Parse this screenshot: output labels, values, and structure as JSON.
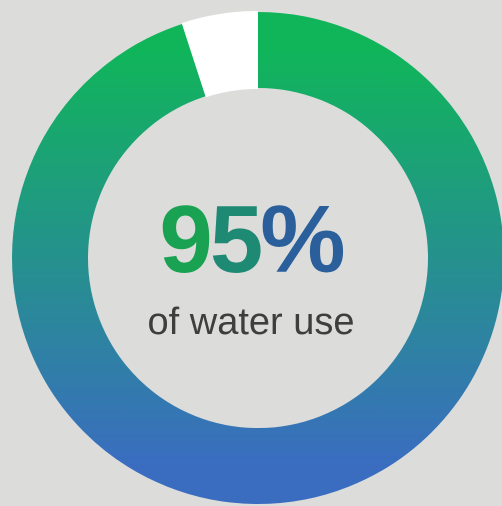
{
  "chart_data": {
    "type": "pie",
    "style": "donut",
    "values": [
      95,
      5
    ],
    "colors": {
      "segment_top": "#10b55a",
      "segment_bottom": "#3a6dc0",
      "remainder": "#ffffff"
    },
    "center_value": {
      "chars": [
        "9",
        "5",
        "%"
      ]
    },
    "center_caption": "of water use"
  }
}
